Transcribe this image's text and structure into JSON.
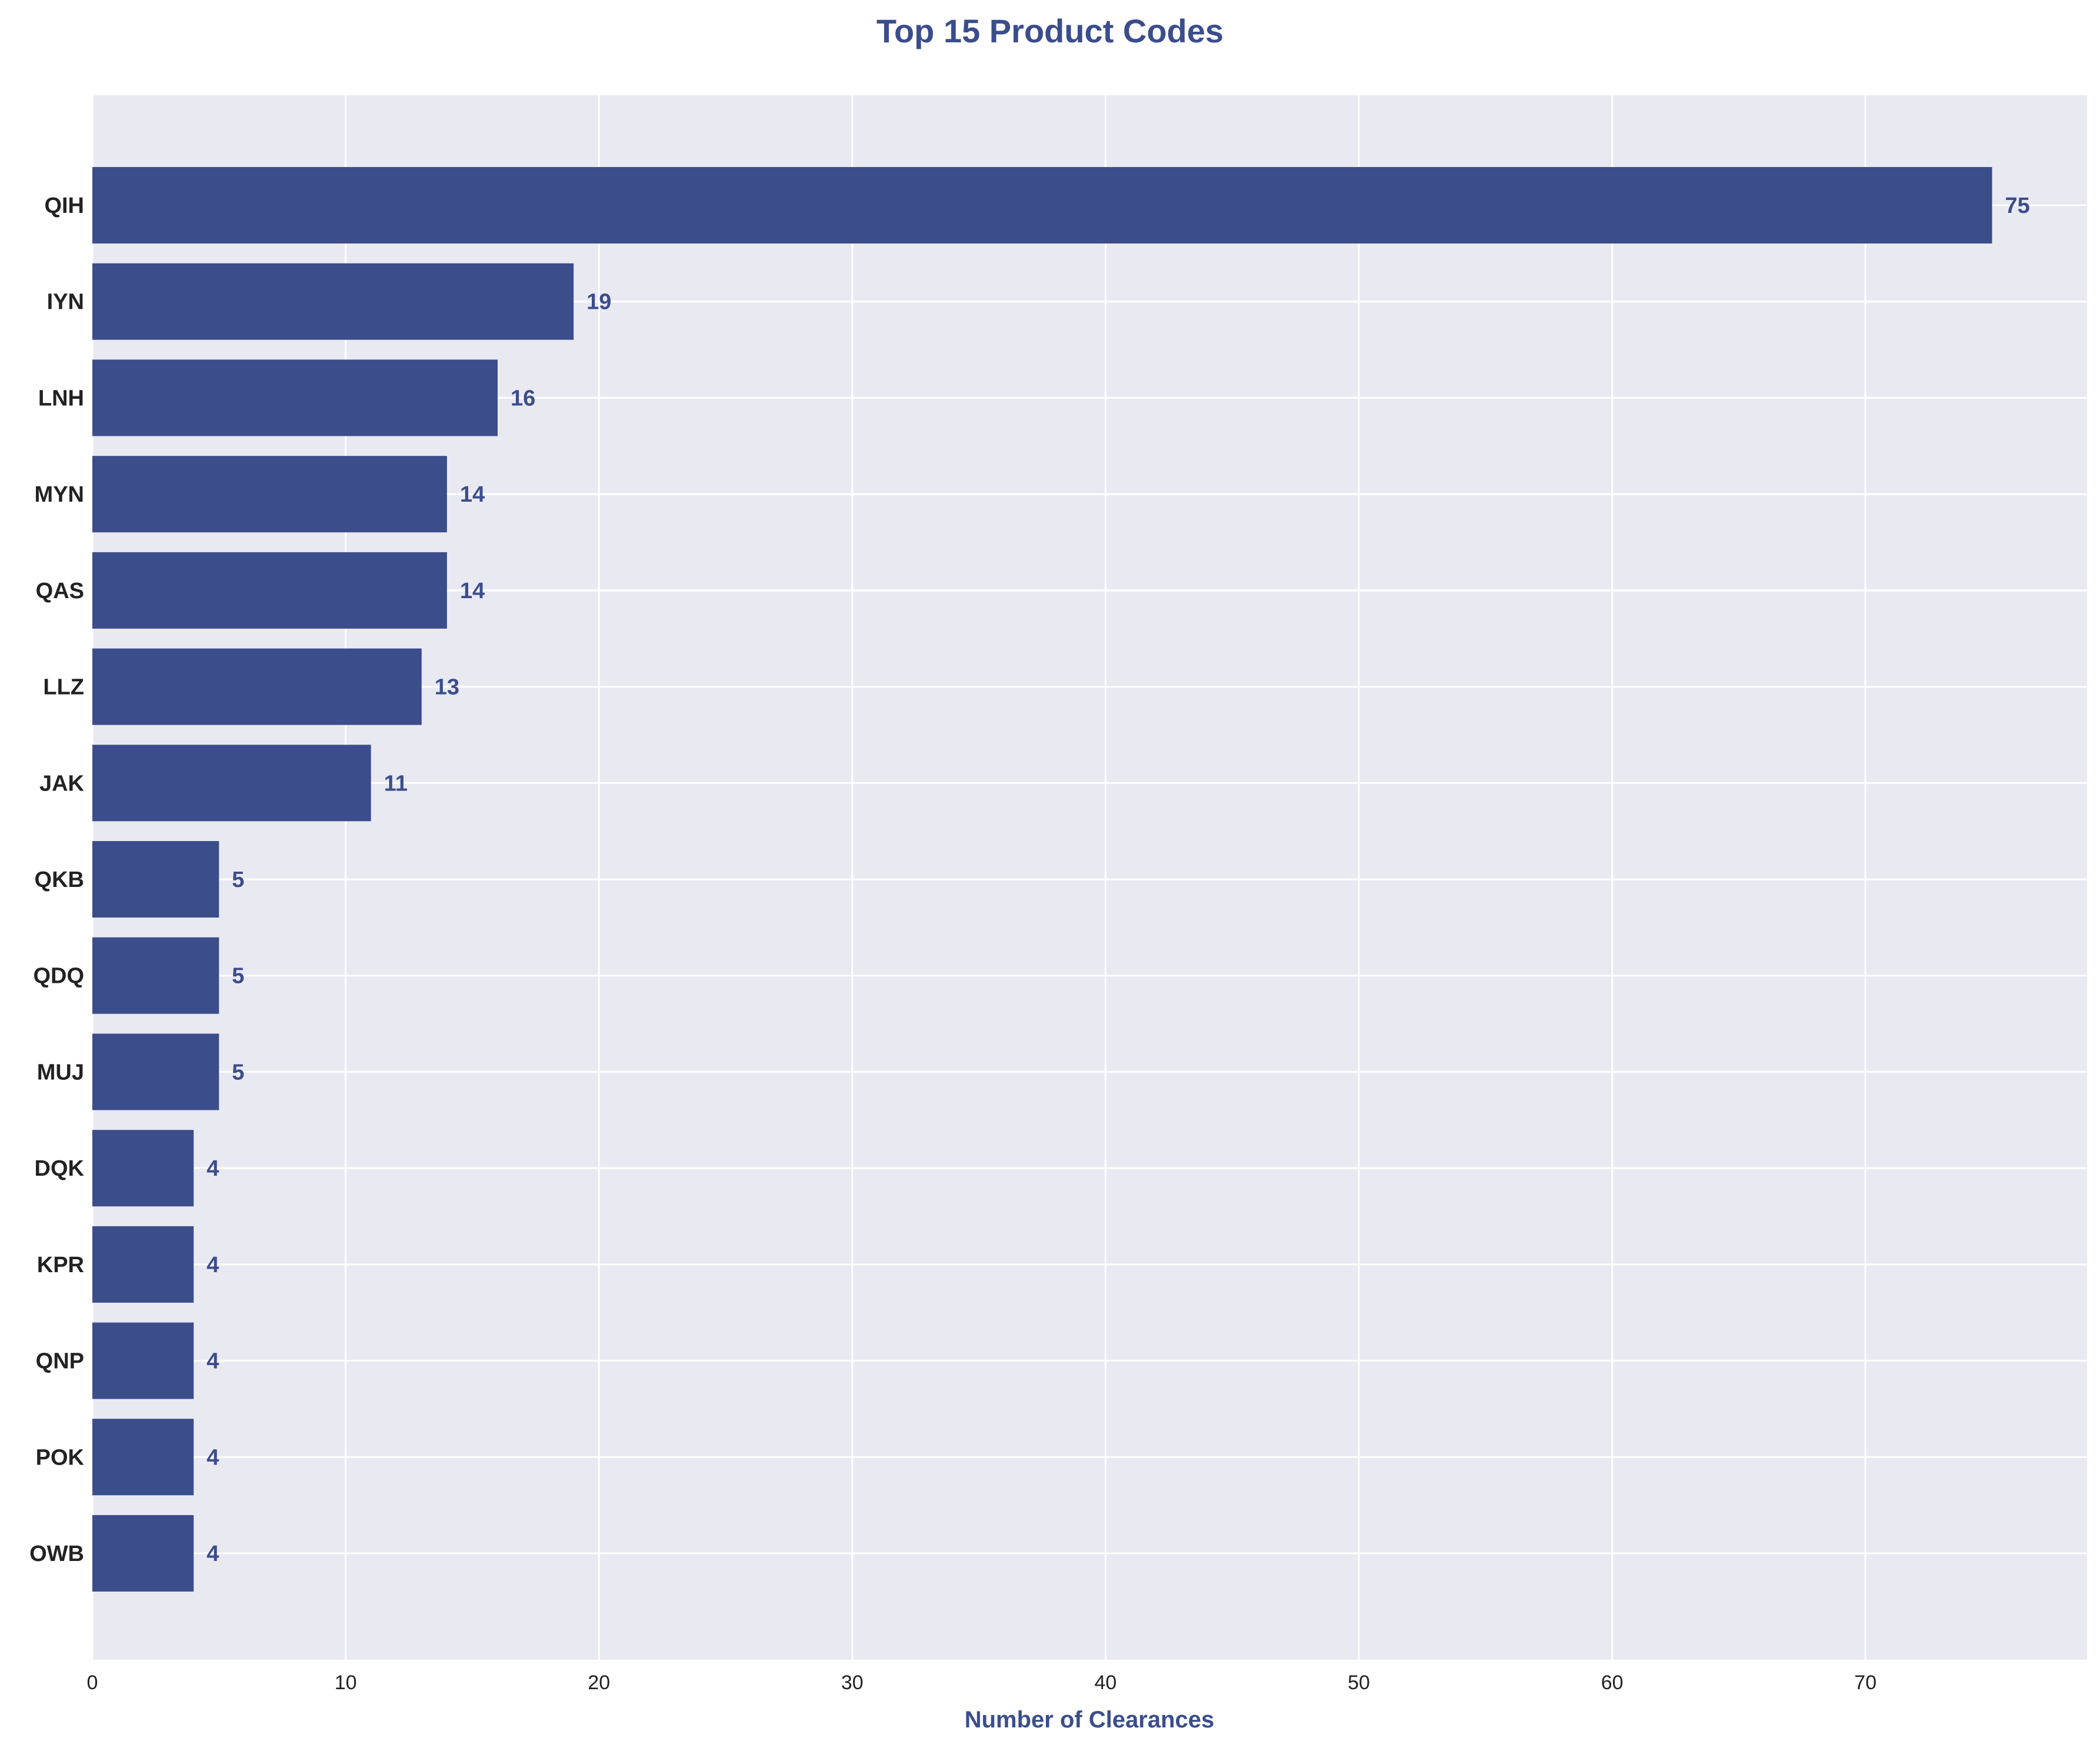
{
  "colors": {
    "bar": "#3b4d8b",
    "title": "#3b4d8b",
    "axis_label": "#3b4d8b",
    "data_label": "#3b4d8b",
    "plot_background": "#e9e9f2",
    "grid": "#ffffff"
  },
  "chart_data": {
    "type": "bar",
    "orientation": "horizontal",
    "title": "Top 15 Product Codes",
    "xlabel": "Number of Clearances",
    "ylabel": "",
    "xlim": [
      0,
      78.75
    ],
    "xticks": [
      0,
      10,
      20,
      30,
      40,
      50,
      60,
      70
    ],
    "grid": true,
    "legend": "none",
    "categories": [
      "QIH",
      "IYN",
      "LNH",
      "MYN",
      "QAS",
      "LLZ",
      "JAK",
      "QKB",
      "QDQ",
      "MUJ",
      "DQK",
      "KPR",
      "QNP",
      "POK",
      "OWB"
    ],
    "values": [
      75,
      19,
      16,
      14,
      14,
      13,
      11,
      5,
      5,
      5,
      4,
      4,
      4,
      4,
      4
    ],
    "data_labels": [
      "75",
      "19",
      "16",
      "14",
      "14",
      "13",
      "11",
      "5",
      "5",
      "5",
      "4",
      "4",
      "4",
      "4",
      "4"
    ]
  }
}
